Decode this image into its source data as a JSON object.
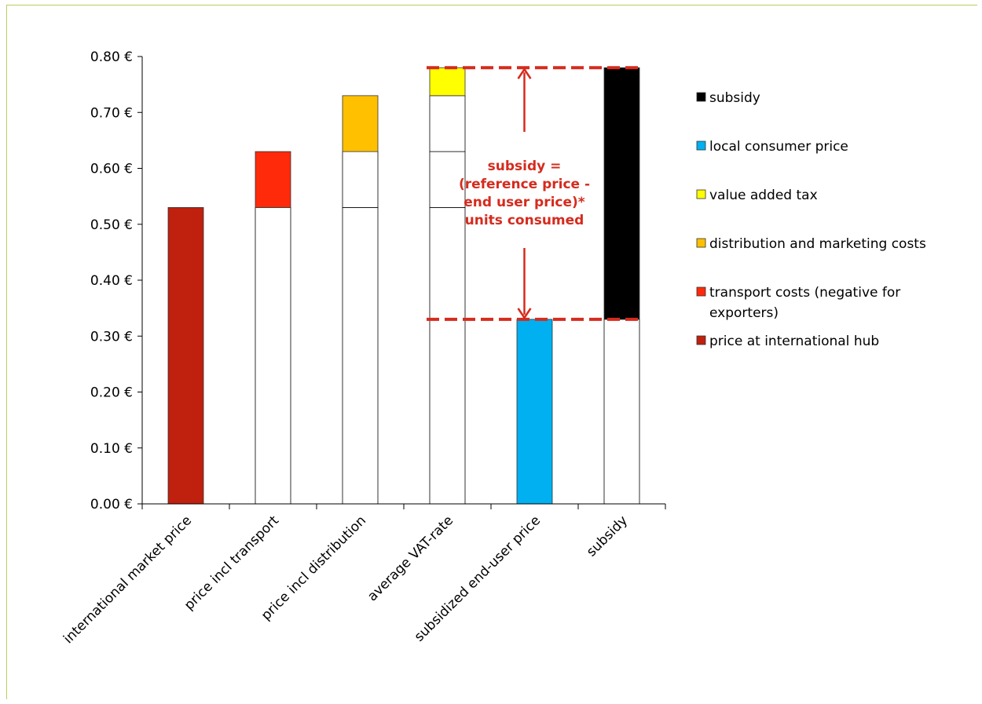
{
  "chart_data": {
    "type": "bar",
    "stacked": true,
    "y_ticks": [
      "0.00 €",
      "0.10 €",
      "0.20 €",
      "0.30 €",
      "0.40 €",
      "0.50 €",
      "0.60 €",
      "0.70 €",
      "0.80 €"
    ],
    "ylim": [
      0,
      0.8
    ],
    "categories": [
      "international market price",
      "price incl transport",
      "price incl distribution",
      "average VAT-rate",
      "subsidized end-user price",
      "subsidy"
    ],
    "series": [
      {
        "name": "price at international hub",
        "color": "#c0200e",
        "values": [
          0.53,
          0,
          0,
          0,
          0,
          0
        ]
      },
      {
        "name": "transport costs (negative for exporters)",
        "color": "#ff2a0a",
        "values": [
          0,
          0.1,
          0,
          0,
          0,
          0
        ]
      },
      {
        "name": "distribution and marketing costs",
        "color": "#ffc000",
        "values": [
          0,
          0,
          0.1,
          0,
          0,
          0
        ]
      },
      {
        "name": "value added tax",
        "color": "#ffff00",
        "values": [
          0,
          0,
          0,
          0.05,
          0,
          0
        ]
      },
      {
        "name": "local consumer price",
        "color": "#00b0f0",
        "values": [
          0,
          0,
          0,
          0,
          0.33,
          0
        ]
      },
      {
        "name": "subsidy",
        "color": "#000000",
        "values": [
          0,
          0,
          0,
          0,
          0,
          0.45
        ]
      }
    ],
    "outline_segments": [
      [],
      [
        [
          0,
          0.53
        ]
      ],
      [
        [
          0,
          0.53
        ],
        [
          0.53,
          0.63
        ]
      ],
      [
        [
          0,
          0.53
        ],
        [
          0.53,
          0.63
        ],
        [
          0.63,
          0.73
        ]
      ],
      [],
      [
        [
          0,
          0.33
        ]
      ]
    ],
    "legend": {
      "placement": "right",
      "items": [
        {
          "label": "subsidy",
          "color": "#000000"
        },
        {
          "label": "local consumer price",
          "color": "#00b0f0"
        },
        {
          "label": "value added tax",
          "color": "#ffff00"
        },
        {
          "label": "distribution and marketing costs",
          "color": "#ffc000"
        },
        {
          "label": "transport costs (negative for",
          "label2": "exporters)",
          "color": "#ff2a0a"
        },
        {
          "label": "price at international hub",
          "color": "#c0200e"
        }
      ]
    },
    "annotation": {
      "lines": [
        "subsidy =",
        "(reference price -",
        "end user price)*",
        "units consumed"
      ],
      "color": "#d52b1e",
      "upper_level": 0.78,
      "lower_level": 0.33
    }
  }
}
